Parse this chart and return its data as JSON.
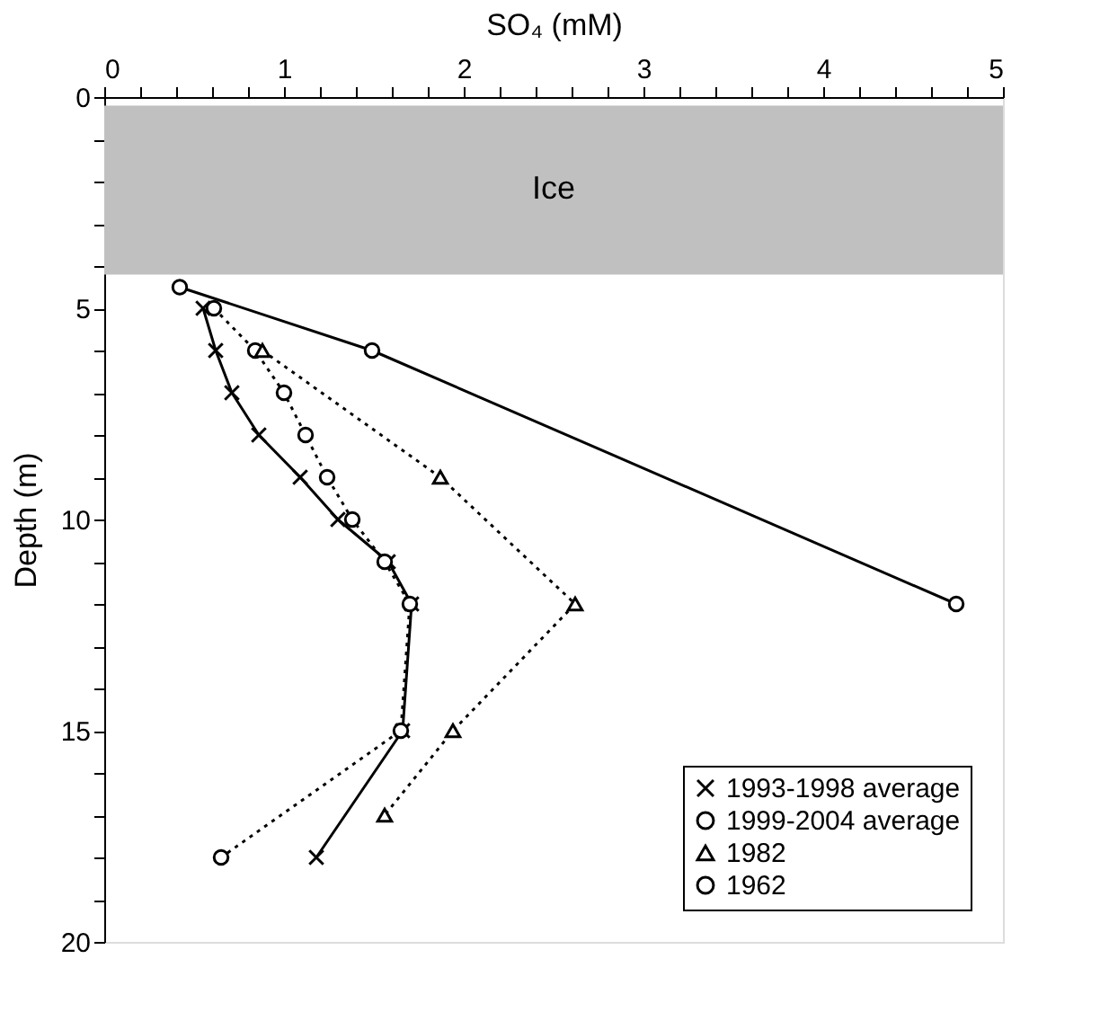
{
  "chart_data": {
    "type": "line",
    "xlabel": "SO₄ (mM)",
    "ylabel": "Depth (m)",
    "xlim": [
      0,
      5
    ],
    "ylim": [
      20,
      0
    ],
    "xticks": [
      0,
      {
        "value": 0.2,
        "label": null
      },
      {
        "value": 0.4,
        "label": null
      },
      {
        "value": 0.6,
        "label": null
      },
      {
        "value": 0.8,
        "label": null
      },
      1,
      {
        "value": 1.2,
        "label": null
      },
      {
        "value": 1.4,
        "label": null
      },
      {
        "value": 1.6,
        "label": null
      },
      {
        "value": 1.8,
        "label": null
      },
      2,
      {
        "value": 2.2,
        "label": null
      },
      {
        "value": 2.4,
        "label": null
      },
      {
        "value": 2.6,
        "label": null
      },
      {
        "value": 2.8,
        "label": null
      },
      3,
      {
        "value": 3.2,
        "label": null
      },
      {
        "value": 3.4,
        "label": null
      },
      {
        "value": 3.6,
        "label": null
      },
      {
        "value": 3.8,
        "label": null
      },
      4,
      {
        "value": 4.2,
        "label": null
      },
      {
        "value": 4.4,
        "label": null
      },
      {
        "value": 4.6,
        "label": null
      },
      {
        "value": 4.8,
        "label": null
      },
      5
    ],
    "yticks": [
      0,
      {
        "value": 1,
        "label": null
      },
      {
        "value": 2,
        "label": null
      },
      {
        "value": 3,
        "label": null
      },
      {
        "value": 4,
        "label": null
      },
      5,
      {
        "value": 6,
        "label": null
      },
      {
        "value": 7,
        "label": null
      },
      {
        "value": 8,
        "label": null
      },
      {
        "value": 9,
        "label": null
      },
      10,
      {
        "value": 11,
        "label": null
      },
      {
        "value": 12,
        "label": null
      },
      {
        "value": 13,
        "label": null
      },
      {
        "value": 14,
        "label": null
      },
      15,
      {
        "value": 16,
        "label": null
      },
      {
        "value": 17,
        "label": null
      },
      {
        "value": 18,
        "label": null
      },
      {
        "value": 19,
        "label": null
      },
      20
    ],
    "grid": false,
    "legend": "bottom right",
    "bands": [
      {
        "axis": "y",
        "from": 0.2,
        "to": 4.2,
        "label": "Ice",
        "color": "#c0c0c0"
      }
    ],
    "series": [
      {
        "name": "1993-1998 average",
        "color": "#000000",
        "marker": "cross",
        "line_style": "solid",
        "x": [
          0.55,
          0.62,
          0.71,
          0.86,
          1.09,
          1.3,
          1.58,
          1.71,
          1.66,
          1.18
        ],
        "values": [
          5,
          6,
          7,
          8,
          9,
          10,
          11,
          12,
          15,
          18
        ]
      },
      {
        "name": "1999-2004 average",
        "color": "#000000",
        "marker": "circle",
        "line_style": "dotted",
        "x": [
          0.61,
          0.84,
          1.0,
          1.12,
          1.24,
          1.38,
          1.56,
          1.7,
          1.65,
          0.65
        ],
        "values": [
          5,
          6,
          7,
          8,
          9,
          10,
          11,
          12,
          15,
          18
        ]
      },
      {
        "name": "1982",
        "color": "#000000",
        "marker": "triangle",
        "line_style": "dotted",
        "x": [
          0.88,
          1.87,
          2.62,
          1.94,
          1.56
        ],
        "values": [
          6,
          9,
          12,
          15,
          17
        ]
      },
      {
        "name": "1962",
        "color": "#000000",
        "marker": "circle",
        "line_style": "solid",
        "x": [
          0.42,
          1.49,
          4.74
        ],
        "values": [
          4.5,
          6,
          12
        ]
      }
    ]
  }
}
